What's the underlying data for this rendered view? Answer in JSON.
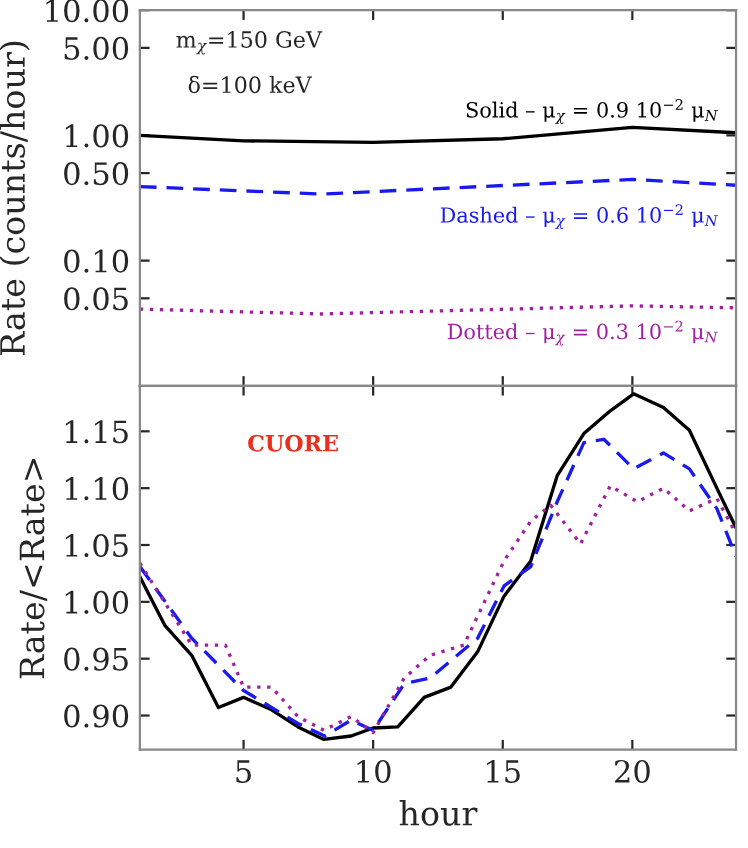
{
  "chart_data": [
    {
      "type": "line",
      "ylabel": "Rate (counts/hour)",
      "log": "y",
      "xlim": [
        1,
        24
      ],
      "xticks": [
        {
          "value": 5,
          "label": null
        },
        {
          "value": 10,
          "label": null
        },
        {
          "value": 15,
          "label": null
        },
        {
          "value": 20,
          "label": null
        }
      ],
      "ylim": [
        0.01,
        10
      ],
      "yticks": [
        {
          "value": 10,
          "label": "10.00"
        },
        {
          "value": 5,
          "label": "5.00"
        },
        {
          "value": 1,
          "label": "1.00"
        },
        {
          "value": 0.5,
          "label": "0.50"
        },
        {
          "value": 0.1,
          "label": "0.10"
        },
        {
          "value": 0.05,
          "label": "0.05"
        }
      ],
      "tick_labels": "y",
      "grid": false,
      "legend": false,
      "annotations": [
        "m$_{χ}$=150 GeV",
        "δ=100 keV"
      ],
      "series": [
        {
          "name": "Solid – μ$_{χ}$ = 0.9 10$^{−2}$ μ$_{N}$",
          "color": "#000000",
          "line_style": "solid",
          "x": [
            1,
            5,
            10,
            15,
            20,
            24
          ],
          "values": [
            1.0,
            0.905,
            0.88,
            0.94,
            1.16,
            1.05
          ]
        },
        {
          "name": "Dashed – μ$_{χ}$ = 0.6 10$^{−2}$ μ$_{N}$",
          "color": "#1a1aee",
          "line_style": "dashed",
          "x": [
            1,
            8,
            20,
            24
          ],
          "values": [
            0.39,
            0.34,
            0.445,
            0.4
          ]
        },
        {
          "name": "Dotted – μ$_{χ}$ = 0.3 10$^{−2}$ μ$_{N}$",
          "color": "#a020a0",
          "line_style": "dotted",
          "x": [
            1,
            8,
            20,
            24
          ],
          "values": [
            0.041,
            0.0375,
            0.0435,
            0.042
          ]
        }
      ]
    },
    {
      "type": "line",
      "xlabel": "hour",
      "ylabel": "Rate/<Rate>",
      "xlim": [
        1,
        24
      ],
      "xticks": [
        5,
        10,
        15,
        20
      ],
      "ylim": [
        0.87,
        1.19
      ],
      "yticks": [
        {
          "value": 0.9,
          "label": "0.90"
        },
        {
          "value": 0.95,
          "label": "0.95"
        },
        {
          "value": 1.0,
          "label": "1.00"
        },
        {
          "value": 1.05,
          "label": "1.05"
        },
        {
          "value": 1.1,
          "label": "1.10"
        },
        {
          "value": 1.15,
          "label": "1.15"
        }
      ],
      "grid": false,
      "legend": false,
      "annotations": [
        "CUORE"
      ],
      "series": [
        {
          "color": "#000000",
          "line_style": "solid",
          "x": [
            1,
            1.97,
            3,
            4.03,
            5,
            6.08,
            7.1,
            8.1,
            9.15,
            10,
            10.95,
            11.97,
            13,
            14.03,
            15.05,
            16.08,
            17.1,
            18.13,
            19.15,
            20.05,
            21.2,
            22.2,
            23.26,
            24
          ],
          "values": [
            1.022,
            0.979,
            0.953,
            0.907,
            0.916,
            0.905,
            0.89,
            0.879,
            0.882,
            0.889,
            0.89,
            0.916,
            0.925,
            0.956,
            1.005,
            1.036,
            1.111,
            1.148,
            1.168,
            1.183,
            1.171,
            1.151,
            1.1,
            1.065
          ]
        },
        {
          "color": "#1a1aee",
          "line_style": "dashed",
          "x": [
            1,
            3,
            5,
            7.1,
            8.13,
            9.15,
            10,
            11.2,
            12.2,
            14.03,
            15.05,
            16.08,
            17.1,
            18.13,
            18.9,
            20.05,
            21.2,
            22.2,
            23.26,
            24
          ],
          "values": [
            1.031,
            0.968,
            0.922,
            0.893,
            0.882,
            0.896,
            0.887,
            0.928,
            0.933,
            0.968,
            1.014,
            1.031,
            1.088,
            1.14,
            1.143,
            1.117,
            1.131,
            1.117,
            1.082,
            1.04
          ]
        },
        {
          "color": "#a020a0",
          "line_style": "dotted",
          "x": [
            1,
            3,
            4.3,
            5,
            6.08,
            7.1,
            8.1,
            9.15,
            10,
            11.2,
            12.2,
            13.5,
            15.05,
            16.08,
            16.85,
            18,
            19.15,
            20.2,
            21.2,
            22.2,
            23.26,
            24
          ],
          "values": [
            1.034,
            0.962,
            0.962,
            0.925,
            0.925,
            0.899,
            0.887,
            0.899,
            0.885,
            0.933,
            0.953,
            0.962,
            1.036,
            1.071,
            1.085,
            1.051,
            1.102,
            1.088,
            1.1,
            1.08,
            1.091,
            1.06
          ]
        }
      ]
    }
  ]
}
